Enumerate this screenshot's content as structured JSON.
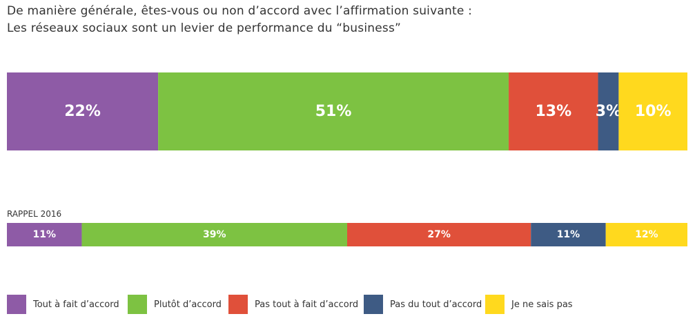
{
  "title": {
    "line1": "De manière générale, êtes-vous ou non d’accord avec l’affirmation suivante :",
    "line2": "Les réseaux sociaux sont un levier de performance du “business”"
  },
  "colors": {
    "purple": "#8E5BA6",
    "green": "#7DC242",
    "red": "#E0503A",
    "navy": "#3E5B84",
    "yellow": "#FFD91E"
  },
  "legend": [
    {
      "label": "Tout à fait d’accord",
      "color": "#8E5BA6"
    },
    {
      "label": "Plutôt d’accord",
      "color": "#7DC242"
    },
    {
      "label": "Pas tout à fait d’accord",
      "color": "#E0503A"
    },
    {
      "label": "Pas du tout d’accord",
      "color": "#3E5B84"
    },
    {
      "label": "Je ne sais pas",
      "color": "#FFD91E"
    }
  ],
  "chart_data": [
    {
      "type": "bar",
      "orientation": "horizontal-stacked-100",
      "title": "",
      "unit": "%",
      "series": [
        {
          "name": "Tout à fait d’accord",
          "value": 22,
          "label": "22%"
        },
        {
          "name": "Plutôt d’accord",
          "value": 51,
          "label": "51%"
        },
        {
          "name": "Pas tout à fait d’accord",
          "value": 13,
          "label": "13%"
        },
        {
          "name": "Pas du tout d’accord",
          "value": 3,
          "label": "3%"
        },
        {
          "name": "Je ne sais pas",
          "value": 10,
          "label": "10%"
        }
      ]
    },
    {
      "type": "bar",
      "orientation": "horizontal-stacked-100",
      "title": "RAPPEL 2016",
      "unit": "%",
      "series": [
        {
          "name": "Tout à fait d’accord",
          "value": 11,
          "label": "11%"
        },
        {
          "name": "Plutôt d’accord",
          "value": 39,
          "label": "39%"
        },
        {
          "name": "Pas tout à fait d’accord",
          "value": 27,
          "label": "27%"
        },
        {
          "name": "Pas du tout d’accord",
          "value": 11,
          "label": "11%"
        },
        {
          "name": "Je ne sais pas",
          "value": 12,
          "label": "12%"
        }
      ]
    }
  ]
}
